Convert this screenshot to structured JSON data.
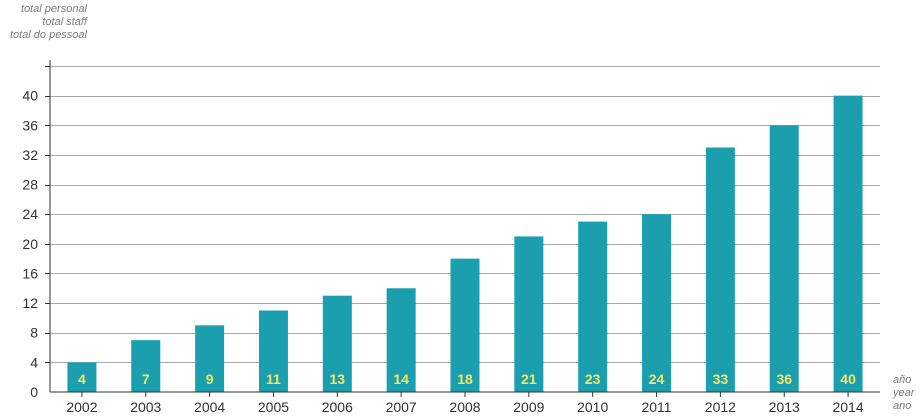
{
  "chart_data": {
    "type": "bar",
    "ylabel_lines": [
      "total personal",
      "total staff",
      "total do pessoal"
    ],
    "xlabel_lines": [
      "año",
      "year",
      "ano"
    ],
    "categories": [
      "2002",
      "2003",
      "2004",
      "2005",
      "2006",
      "2007",
      "2008",
      "2009",
      "2010",
      "2011",
      "2012",
      "2013",
      "2014"
    ],
    "values": [
      4,
      7,
      9,
      11,
      13,
      14,
      18,
      21,
      23,
      24,
      33,
      36,
      40
    ],
    "data_labels": [
      "4",
      "7",
      "9",
      "11",
      "13",
      "14",
      "18",
      "21",
      "23",
      "24",
      "33",
      "36",
      "40"
    ],
    "yticks": [
      0,
      4,
      8,
      12,
      16,
      20,
      24,
      28,
      32,
      36,
      40
    ],
    "ylim": [
      0,
      44
    ],
    "grid": true,
    "bar_color": "#1b9fae",
    "label_color": "#f5e663",
    "grid_color": "#a8a8a8"
  }
}
